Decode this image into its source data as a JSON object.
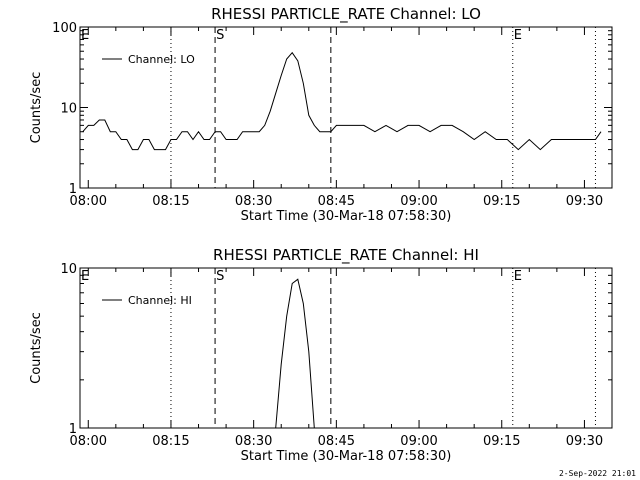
{
  "footer_date": "2-Sep-2022 21:01",
  "chart_data": [
    {
      "type": "line",
      "title": "RHESSI PARTICLE_RATE Channel: LO",
      "xlabel": "Start Time (30-Mar-18 07:58:30)",
      "ylabel": "Counts/sec",
      "yscale": "log",
      "ylim": [
        1,
        100
      ],
      "y_ticks": [
        "1",
        "10",
        "100"
      ],
      "x_ticks": [
        "08:00",
        "08:15",
        "08:30",
        "08:45",
        "09:00",
        "09:15",
        "09:30"
      ],
      "legend": "Channel: LO",
      "legend_position": "top-left",
      "markers": [
        {
          "label": "E",
          "time": "07:59",
          "style": "none"
        },
        {
          "label": "",
          "time": "08:15",
          "style": "dotted"
        },
        {
          "label": "S",
          "time": "08:23",
          "style": "dashed"
        },
        {
          "label": "",
          "time": "08:44",
          "style": "dashed"
        },
        {
          "label": "E",
          "time": "09:17",
          "style": "dotted"
        },
        {
          "label": "",
          "time": "09:32",
          "style": "dotted"
        }
      ],
      "series": [
        {
          "name": "Channel: LO",
          "x": [
            "07:59",
            "08:00",
            "08:01",
            "08:02",
            "08:03",
            "08:04",
            "08:05",
            "08:06",
            "08:07",
            "08:08",
            "08:09",
            "08:10",
            "08:11",
            "08:12",
            "08:13",
            "08:14",
            "08:15",
            "08:16",
            "08:17",
            "08:18",
            "08:19",
            "08:20",
            "08:21",
            "08:22",
            "08:23",
            "08:24",
            "08:25",
            "08:26",
            "08:27",
            "08:28",
            "08:29",
            "08:30",
            "08:31",
            "08:32",
            "08:33",
            "08:34",
            "08:35",
            "08:36",
            "08:37",
            "08:38",
            "08:39",
            "08:40",
            "08:41",
            "08:42",
            "08:43",
            "08:44",
            "08:45",
            "08:46",
            "08:48",
            "08:50",
            "08:52",
            "08:54",
            "08:56",
            "08:58",
            "09:00",
            "09:02",
            "09:04",
            "09:06",
            "09:08",
            "09:10",
            "09:12",
            "09:14",
            "09:16",
            "09:18",
            "09:20",
            "09:22",
            "09:24",
            "09:26",
            "09:28",
            "09:30",
            "09:32",
            "09:33"
          ],
          "values": [
            5,
            6,
            6,
            7,
            7,
            5,
            5,
            4,
            4,
            3,
            3,
            4,
            4,
            3,
            3,
            3,
            4,
            4,
            5,
            5,
            4,
            5,
            4,
            4,
            5,
            5,
            4,
            4,
            4,
            5,
            5,
            5,
            5,
            6,
            9,
            15,
            25,
            40,
            48,
            38,
            20,
            8,
            6,
            5,
            5,
            5,
            6,
            6,
            6,
            6,
            5,
            6,
            5,
            6,
            6,
            5,
            6,
            6,
            5,
            4,
            5,
            4,
            4,
            3,
            4,
            3,
            4,
            4,
            4,
            4,
            4,
            5
          ]
        }
      ]
    },
    {
      "type": "line",
      "title": "RHESSI PARTICLE_RATE Channel: HI",
      "xlabel": "Start Time (30-Mar-18 07:58:30)",
      "ylabel": "Counts/sec",
      "yscale": "log",
      "ylim": [
        1,
        10
      ],
      "y_ticks": [
        "1",
        "10"
      ],
      "x_ticks": [
        "08:00",
        "08:15",
        "08:30",
        "08:45",
        "09:00",
        "09:15",
        "09:30"
      ],
      "legend": "Channel: HI",
      "legend_position": "top-left",
      "markers": [
        {
          "label": "E",
          "time": "07:59",
          "style": "none"
        },
        {
          "label": "",
          "time": "08:15",
          "style": "dotted"
        },
        {
          "label": "S",
          "time": "08:23",
          "style": "dashed"
        },
        {
          "label": "",
          "time": "08:44",
          "style": "dashed"
        },
        {
          "label": "E",
          "time": "09:17",
          "style": "dotted"
        },
        {
          "label": "",
          "time": "09:32",
          "style": "dotted"
        }
      ],
      "series": [
        {
          "name": "Channel: HI",
          "x": [
            "08:34",
            "08:35",
            "08:36",
            "08:37",
            "08:38",
            "08:39",
            "08:40",
            "08:41"
          ],
          "values": [
            1,
            2.5,
            5,
            8,
            8.5,
            6,
            3,
            1
          ]
        }
      ]
    }
  ]
}
